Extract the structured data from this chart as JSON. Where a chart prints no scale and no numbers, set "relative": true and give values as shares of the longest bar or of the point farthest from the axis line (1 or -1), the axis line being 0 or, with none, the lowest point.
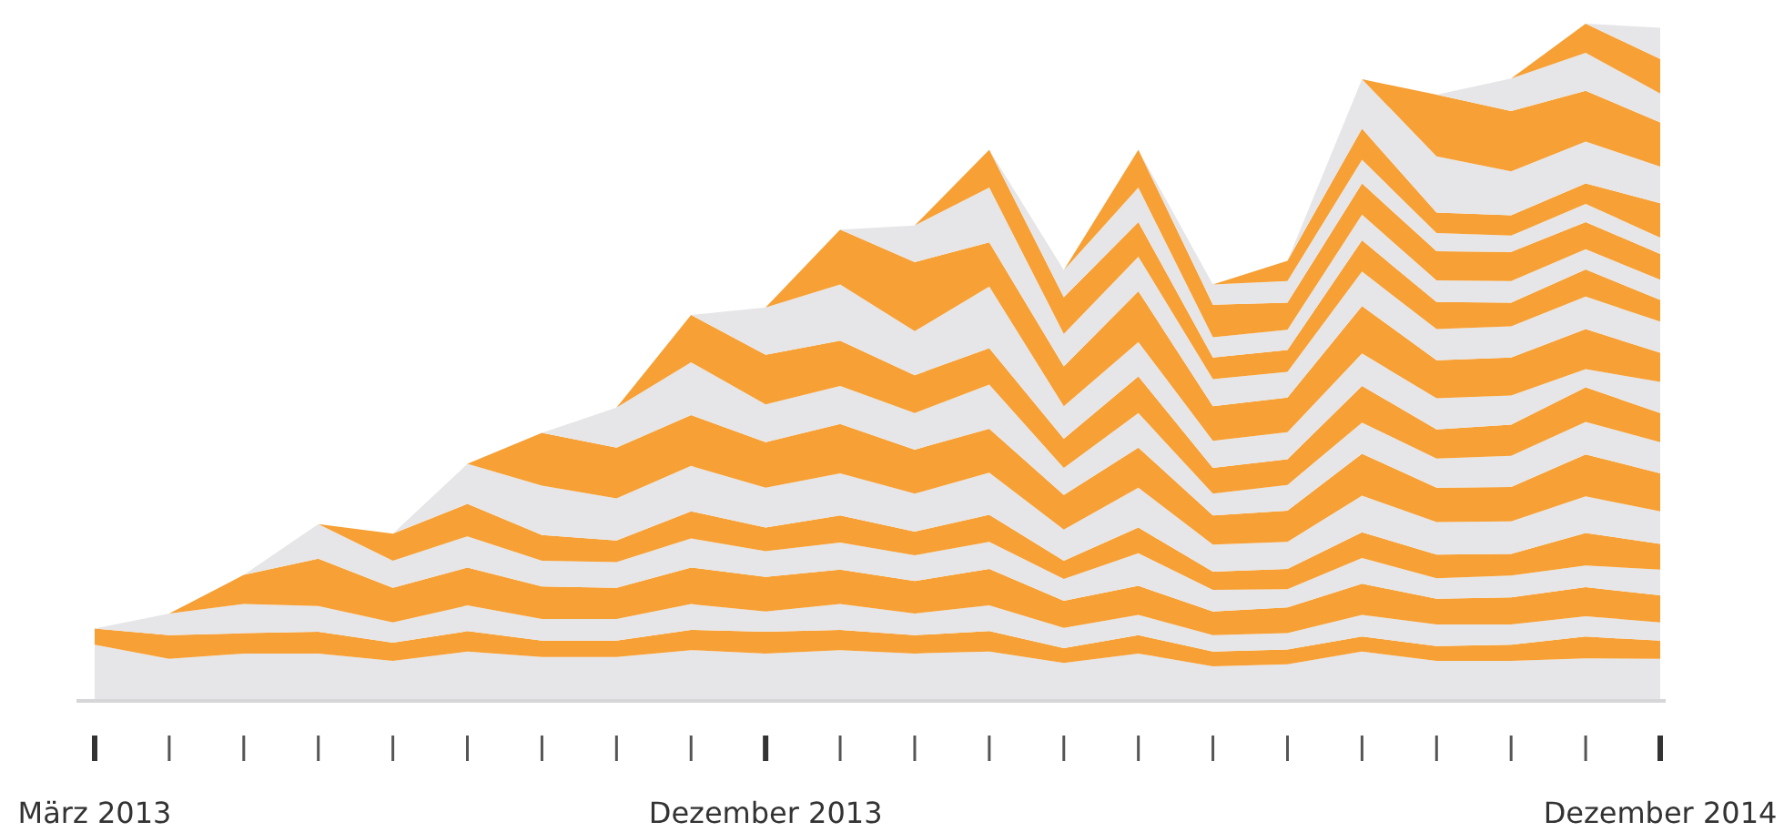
{
  "chart_data": {
    "type": "area",
    "stacked": true,
    "relative": true,
    "categories": [
      "März 2013",
      null,
      null,
      null,
      null,
      null,
      null,
      null,
      null,
      "Dezember 2013",
      null,
      null,
      null,
      null,
      null,
      null,
      null,
      null,
      null,
      null,
      null,
      "Dezember 2014"
    ],
    "series": [
      {
        "color": "#e6e6e8",
        "values": [
          0.083,
          0.062,
          0.07,
          0.07,
          0.059,
          0.073,
          0.065,
          0.065,
          0.075,
          0.07,
          0.075,
          0.07,
          0.073,
          0.056,
          0.07,
          0.051,
          0.054,
          0.073,
          0.059,
          0.059,
          0.063,
          0.062
        ]
      },
      {
        "color": "#f7a035",
        "values": [
          0.024,
          0.035,
          0.03,
          0.032,
          0.027,
          0.03,
          0.024,
          0.024,
          0.03,
          0.032,
          0.03,
          0.027,
          0.03,
          0.022,
          0.027,
          0.022,
          0.022,
          0.022,
          0.022,
          0.024,
          0.032,
          0.027
        ]
      },
      {
        "color": "#e6e6e8",
        "values": [
          0,
          0.032,
          0.043,
          0.038,
          0.03,
          0.038,
          0.032,
          0.032,
          0.038,
          0.03,
          0.038,
          0.032,
          0.038,
          0.03,
          0.03,
          0.024,
          0.024,
          0.032,
          0.032,
          0.03,
          0.03,
          0.027
        ]
      },
      {
        "color": "#f7a035",
        "values": [
          null,
          0,
          0.043,
          0.07,
          0.051,
          0.056,
          0.048,
          0.046,
          0.054,
          0.051,
          0.051,
          0.048,
          0.054,
          0.04,
          0.043,
          0.035,
          0.038,
          0.046,
          0.038,
          0.04,
          0.043,
          0.04
        ]
      },
      {
        "color": "#e6e6e8",
        "values": [
          null,
          null,
          0,
          0.051,
          0.04,
          0.046,
          0.038,
          0.038,
          0.043,
          0.038,
          0.04,
          0.038,
          0.04,
          0.032,
          0.048,
          0.032,
          0.027,
          0.038,
          0.03,
          0.032,
          0.032,
          0.038
        ]
      },
      {
        "color": "#f7a035",
        "values": [
          null,
          null,
          null,
          0,
          0.04,
          0.048,
          0.038,
          0.032,
          0.04,
          0.035,
          0.04,
          0.035,
          0.04,
          0.027,
          0.038,
          0.027,
          0.03,
          0.038,
          0.035,
          0.032,
          0.048,
          0.038
        ]
      },
      {
        "color": "#e6e6e8",
        "values": [
          null,
          null,
          null,
          null,
          0,
          0.059,
          0.073,
          0.062,
          0.067,
          0.059,
          0.062,
          0.056,
          0.062,
          0.046,
          0.059,
          0.04,
          0.04,
          0.054,
          0.048,
          0.048,
          0.054,
          0.048
        ]
      },
      {
        "color": "#f7a035",
        "values": [
          null,
          null,
          null,
          null,
          null,
          0,
          0.078,
          0.075,
          0.075,
          0.067,
          0.073,
          0.065,
          0.065,
          0.051,
          0.059,
          0.043,
          0.046,
          0.062,
          0.051,
          0.051,
          0.062,
          0.056
        ]
      },
      {
        "color": "#e6e6e8",
        "values": [
          null,
          null,
          null,
          null,
          null,
          null,
          0,
          0.059,
          0.078,
          0.056,
          0.056,
          0.054,
          0.065,
          0.04,
          0.051,
          0.032,
          0.038,
          0.046,
          0.043,
          0.046,
          0.048,
          0.046
        ]
      },
      {
        "color": "#f7a035",
        "values": [
          null,
          null,
          null,
          null,
          null,
          null,
          null,
          0,
          0.07,
          0.073,
          0.067,
          0.056,
          0.054,
          0.043,
          0.054,
          0.038,
          0.038,
          0.054,
          0.043,
          0.046,
          0.051,
          0.043
        ]
      },
      {
        "color": "#e6e6e8",
        "values": [
          null,
          null,
          null,
          null,
          null,
          null,
          null,
          null,
          0,
          0.07,
          0.083,
          0.065,
          0.091,
          0.048,
          0.051,
          0.04,
          0.04,
          0.048,
          0.046,
          0.043,
          0.027,
          0.046
        ]
      },
      {
        "color": "#f7a035",
        "values": [
          null,
          null,
          null,
          null,
          null,
          null,
          null,
          null,
          null,
          0,
          0.081,
          0.102,
          0.065,
          0.059,
          0.075,
          0.051,
          0.051,
          0.07,
          0.056,
          0.056,
          0.059,
          0.043
        ]
      },
      {
        "color": "#e6e6e8",
        "values": [
          null,
          null,
          null,
          null,
          null,
          null,
          null,
          null,
          null,
          null,
          0,
          0.054,
          0.081,
          0.048,
          0.051,
          0.04,
          0.038,
          0.051,
          0.046,
          0.046,
          0.048,
          0.046
        ]
      },
      {
        "color": "#f7a035",
        "values": [
          null,
          null,
          null,
          null,
          null,
          null,
          null,
          null,
          null,
          null,
          null,
          0,
          0.056,
          0.054,
          0.051,
          0.032,
          0.032,
          0.046,
          0.04,
          0.035,
          0.04,
          0.032
        ]
      },
      {
        "color": "#e6e6e8",
        "values": [
          null,
          null,
          null,
          null,
          null,
          null,
          null,
          null,
          null,
          null,
          null,
          null,
          0,
          0.04,
          0.051,
          0.03,
          0.03,
          0.038,
          0.032,
          0.032,
          0.03,
          0.03
        ]
      },
      {
        "color": "#f7a035",
        "values": [
          null,
          null,
          null,
          null,
          null,
          null,
          null,
          null,
          null,
          null,
          null,
          null,
          null,
          0,
          0.056,
          0.048,
          0.04,
          0.046,
          0.043,
          0.043,
          0.04,
          0.038
        ]
      },
      {
        "color": "#e6e6e8",
        "values": [
          null,
          null,
          null,
          null,
          null,
          null,
          null,
          null,
          null,
          null,
          null,
          null,
          null,
          null,
          0,
          0.03,
          0.032,
          0.035,
          0.027,
          0.024,
          0.027,
          0.024
        ]
      },
      {
        "color": "#f7a035",
        "values": [
          null,
          null,
          null,
          null,
          null,
          null,
          null,
          null,
          null,
          null,
          null,
          null,
          null,
          null,
          null,
          0,
          0.03,
          0.046,
          0.03,
          0.03,
          0.03,
          0.051
        ]
      },
      {
        "color": "#e6e6e8",
        "values": [
          null,
          null,
          null,
          null,
          null,
          null,
          null,
          null,
          null,
          null,
          null,
          null,
          null,
          null,
          null,
          null,
          0,
          0.073,
          0.083,
          0.065,
          0.062,
          0.054
        ]
      },
      {
        "color": "#f7a035",
        "values": [
          null,
          null,
          null,
          null,
          null,
          null,
          null,
          null,
          null,
          null,
          null,
          null,
          null,
          null,
          null,
          null,
          null,
          0,
          0.091,
          0.089,
          0.075,
          0.065
        ]
      },
      {
        "color": "#e6e6e8",
        "values": [
          null,
          null,
          null,
          null,
          null,
          null,
          null,
          null,
          null,
          null,
          null,
          null,
          null,
          null,
          null,
          null,
          null,
          null,
          0,
          0.048,
          0.056,
          0.043
        ]
      },
      {
        "color": "#f7a035",
        "values": [
          null,
          null,
          null,
          null,
          null,
          null,
          null,
          null,
          null,
          null,
          null,
          null,
          null,
          null,
          null,
          null,
          null,
          null,
          null,
          0,
          0.043,
          0.051
        ]
      },
      {
        "color": "#e6e6e8",
        "values": [
          null,
          null,
          null,
          null,
          null,
          null,
          null,
          null,
          null,
          null,
          null,
          null,
          null,
          null,
          null,
          null,
          null,
          null,
          null,
          null,
          0,
          0.046
        ]
      }
    ]
  }
}
